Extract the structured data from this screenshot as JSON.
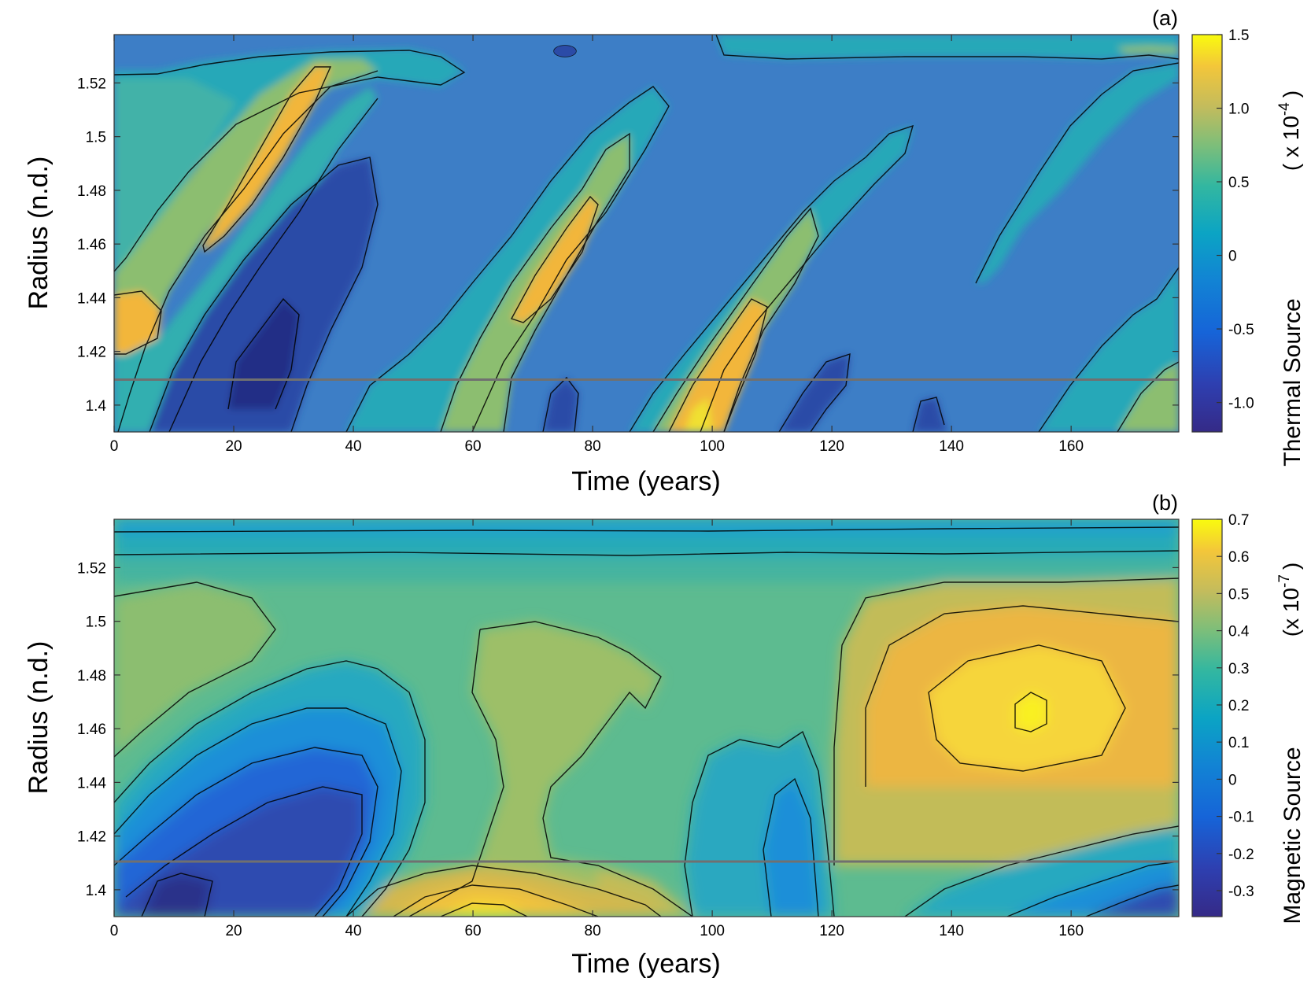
{
  "chart_data": [
    {
      "type": "heatmap",
      "panel_label": "(a)",
      "xlabel": "Time  (years)",
      "ylabel": "Radius  (n.d.)",
      "xlim": [
        0,
        178
      ],
      "ylim": [
        1.39,
        1.538
      ],
      "x_ticks": [
        0,
        20,
        40,
        60,
        80,
        100,
        120,
        140,
        160
      ],
      "x_tick_labels": [
        "0",
        "20",
        "40",
        "60",
        "80",
        "100",
        "120",
        "140",
        "160"
      ],
      "y_ticks": [
        1.4,
        1.42,
        1.44,
        1.46,
        1.48,
        1.5,
        1.52
      ],
      "y_tick_labels": [
        "1.4",
        "1.42",
        "1.44",
        "1.46",
        "1.48",
        "1.5",
        "1.52"
      ],
      "colorbar": {
        "label": "Thermal Source",
        "scale_text": "( x 10",
        "scale_exp": "-4",
        "scale_close": ")",
        "range": [
          -1.2,
          1.5
        ],
        "ticks": [
          1.5,
          1.0,
          0.5,
          0,
          -0.5,
          -1.0
        ],
        "tick_labels": [
          "1.5",
          "1.0",
          "0.5",
          "0",
          "-0.5",
          "-1.0"
        ]
      },
      "reference_line": {
        "radius": 1.4095,
        "color": "#707070"
      },
      "colormap": "parula",
      "features": [
        {
          "kind": "positive_band",
          "description": "diagonal bands drifting to larger radius with time",
          "times": [
            20,
            75,
            100
          ],
          "peak": 1.0
        },
        {
          "kind": "negative_region",
          "times": [
            25,
            80,
            120,
            145
          ],
          "peak": -1.0
        },
        {
          "kind": "max",
          "time": 98,
          "radius": 1.395,
          "value": 1.5
        }
      ]
    },
    {
      "type": "heatmap",
      "panel_label": "(b)",
      "xlabel": "Time  (years)",
      "ylabel": "Radius  (n.d.)",
      "xlim": [
        0,
        178
      ],
      "ylim": [
        1.39,
        1.538
      ],
      "x_ticks": [
        0,
        20,
        40,
        60,
        80,
        100,
        120,
        140,
        160
      ],
      "x_tick_labels": [
        "0",
        "20",
        "40",
        "60",
        "80",
        "100",
        "120",
        "140",
        "160"
      ],
      "y_ticks": [
        1.4,
        1.42,
        1.44,
        1.46,
        1.48,
        1.5,
        1.52
      ],
      "y_tick_labels": [
        "1.4",
        "1.42",
        "1.44",
        "1.46",
        "1.48",
        "1.5",
        "1.52"
      ],
      "colorbar": {
        "label": "Magnetic  Source",
        "scale_text": "(x 10",
        "scale_exp": "-7",
        "scale_close": ")",
        "range": [
          -0.37,
          0.7
        ],
        "ticks": [
          0.7,
          0.6,
          0.5,
          0.4,
          0.3,
          0.2,
          0.1,
          0,
          -0.1,
          -0.2,
          -0.3
        ],
        "tick_labels": [
          "0.7",
          "0.6",
          "0.5",
          "0.4",
          "0.3",
          "0.2",
          "0.1",
          "0",
          "-0.1",
          "-0.2",
          "-0.3"
        ]
      },
      "reference_line": {
        "radius": 1.4105,
        "color": "#707070"
      },
      "colormap": "parula",
      "features": [
        {
          "kind": "min",
          "time": 12,
          "radius": 1.397,
          "value": -0.35
        },
        {
          "kind": "max",
          "time": 155,
          "radius": 1.461,
          "value": 0.68
        },
        {
          "kind": "positive_lobe",
          "time": 62,
          "radius": 1.393,
          "value": 0.6
        },
        {
          "kind": "negative_lobe",
          "time": 115,
          "radius": 1.425,
          "value": -0.05
        }
      ]
    }
  ]
}
